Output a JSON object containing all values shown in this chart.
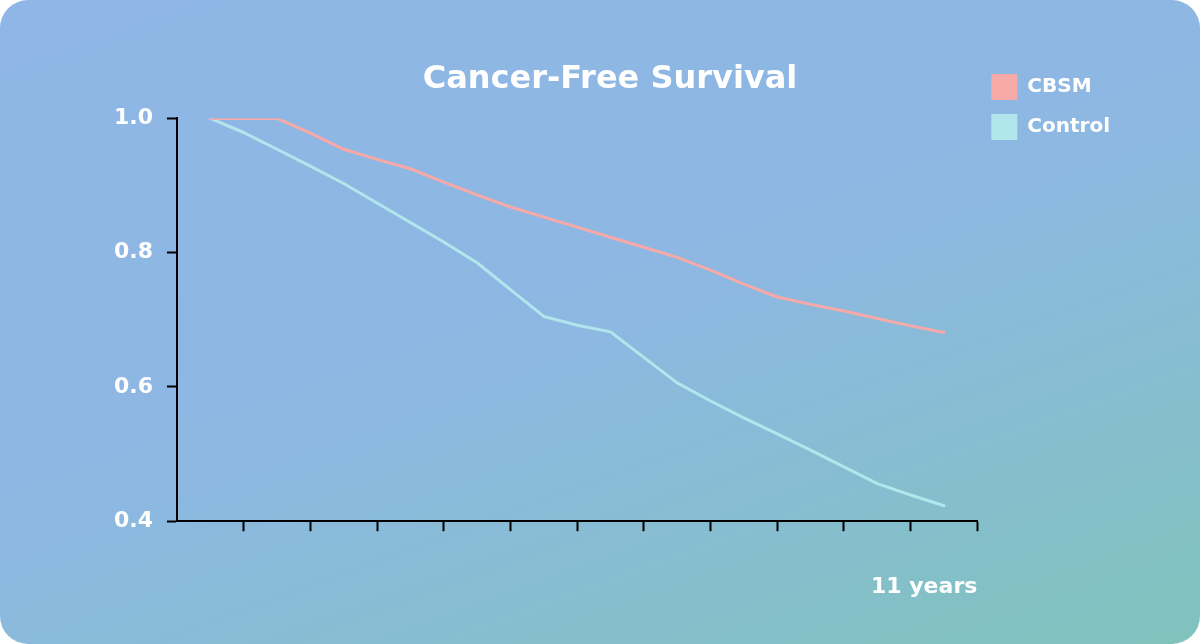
{
  "chart_data": {
    "type": "line",
    "title": "Cancer-Free Survival",
    "xlabel": "11 years",
    "categories": [
      null,
      null,
      null,
      null,
      null,
      null,
      null,
      null,
      null,
      null,
      null,
      null,
      null,
      null,
      null,
      null,
      null,
      null,
      null,
      null,
      null,
      null,
      null,
      null,
      null
    ],
    "ylim": [
      0.4,
      1.0
    ],
    "yticks": [
      {
        "value": 0.4,
        "label": "0.4"
      },
      {
        "value": 0.6,
        "label": "0.6"
      },
      {
        "value": 0.8,
        "label": "0.8"
      },
      {
        "value": 1.0,
        "label": "1.0"
      }
    ],
    "grid": false,
    "legend": "top right",
    "marker": "none",
    "line_style": "solid",
    "series": [
      {
        "name": "CBSM",
        "color": "#f7a9a8",
        "values": [
          null,
          1.0,
          1.0,
          1.0,
          0.978,
          0.954,
          0.939,
          0.925,
          0.905,
          0.886,
          0.868,
          0.853,
          0.838,
          0.823,
          0.808,
          0.793,
          0.774,
          0.753,
          0.734,
          0.723,
          0.713,
          0.702,
          0.691,
          0.681,
          null
        ]
      },
      {
        "name": "Control",
        "color": "#b0e6ec",
        "values": [
          null,
          1.0,
          0.979,
          0.954,
          0.929,
          0.903,
          0.874,
          0.845,
          0.816,
          0.785,
          0.745,
          0.705,
          0.692,
          0.682,
          0.644,
          0.606,
          0.579,
          0.554,
          0.53,
          0.506,
          0.481,
          0.456,
          0.439,
          0.423,
          null
        ]
      }
    ]
  }
}
